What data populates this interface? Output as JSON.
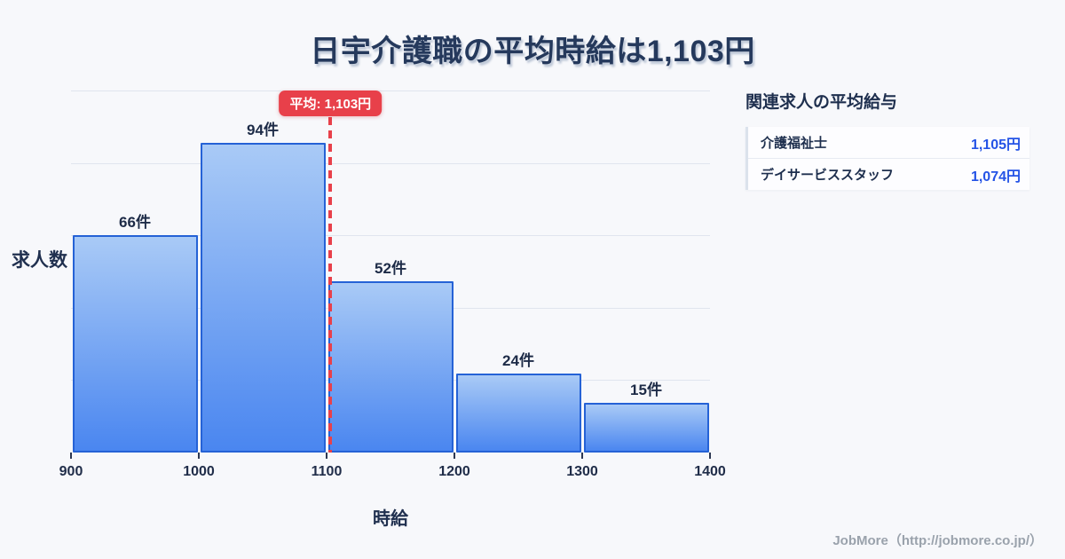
{
  "title": "日宇介護職の平均時給は1,103円",
  "chart_data": {
    "type": "bar",
    "title": "日宇介護職の平均時給は1,103円",
    "xlabel": "時給",
    "ylabel": "求人数",
    "x_bin_edges": [
      900,
      1000,
      1100,
      1200,
      1300,
      1400
    ],
    "x_ticks": [
      "900",
      "1000",
      "1100",
      "1200",
      "1300",
      "1400"
    ],
    "values": [
      66,
      94,
      52,
      24,
      15
    ],
    "bar_labels": [
      "66件",
      "94件",
      "52件",
      "24件",
      "15件"
    ],
    "xlim": [
      900,
      1400
    ],
    "ylim": [
      0,
      110
    ],
    "y_gridlines": [
      22,
      44,
      66,
      88,
      110
    ],
    "grid": true,
    "legend_position": "none",
    "mean_line": {
      "value": 1103,
      "label": "平均: 1,103円",
      "color": "#e8404a"
    },
    "bar_color_top": "#a9caf6",
    "bar_color_bottom": "#4a86f0",
    "bar_border_color": "#2562d6"
  },
  "side_panel": {
    "heading": "関連求人の平均給与",
    "rows": [
      {
        "label": "介護福祉士",
        "value": "1,105円"
      },
      {
        "label": "デイサービススタッフ",
        "value": "1,074円"
      }
    ]
  },
  "footer": {
    "credit": "JobMore（http://jobmore.co.jp/）"
  },
  "colors": {
    "background": "#f7f8fb",
    "title_text": "#25395c",
    "dark_text": "#20304f",
    "gridline": "#e0e5ee",
    "accent_red": "#e8404a",
    "value_blue": "#2453e6",
    "footer_gray": "#9aa2ac"
  }
}
